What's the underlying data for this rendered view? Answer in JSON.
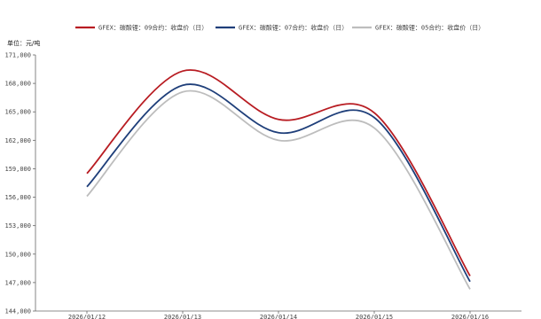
{
  "chart_data": {
    "type": "line",
    "unit_label": "单位：元/吨",
    "x": [
      "2026/01/12",
      "2026/01/13",
      "2026/01/14",
      "2026/01/15",
      "2026/01/16"
    ],
    "ylim": [
      144000,
      171000
    ],
    "yticks": [
      144000,
      147000,
      150000,
      153000,
      156000,
      159000,
      162000,
      165000,
      168000,
      171000
    ],
    "ytick_labels": [
      "144,000",
      "147,000",
      "150,000",
      "153,000",
      "156,000",
      "159,000",
      "162,000",
      "165,000",
      "168,000",
      "171,000"
    ],
    "legend_position": "top-center",
    "grid": false,
    "series": [
      {
        "name": "GFEX：碳酸锂：09合约：收盘价（日）",
        "color": "#b81c22",
        "values": [
          158500,
          169300,
          164200,
          164900,
          147700
        ]
      },
      {
        "name": "GFEX：碳酸锂：07合约：收盘价（日）",
        "color": "#1f3f7a",
        "values": [
          157100,
          167800,
          162800,
          164400,
          147100
        ]
      },
      {
        "name": "GFEX：碳酸锂：05合约：收盘价（日）",
        "color": "#bdbdbd",
        "values": [
          156100,
          167100,
          162000,
          163300,
          146300
        ]
      }
    ]
  }
}
